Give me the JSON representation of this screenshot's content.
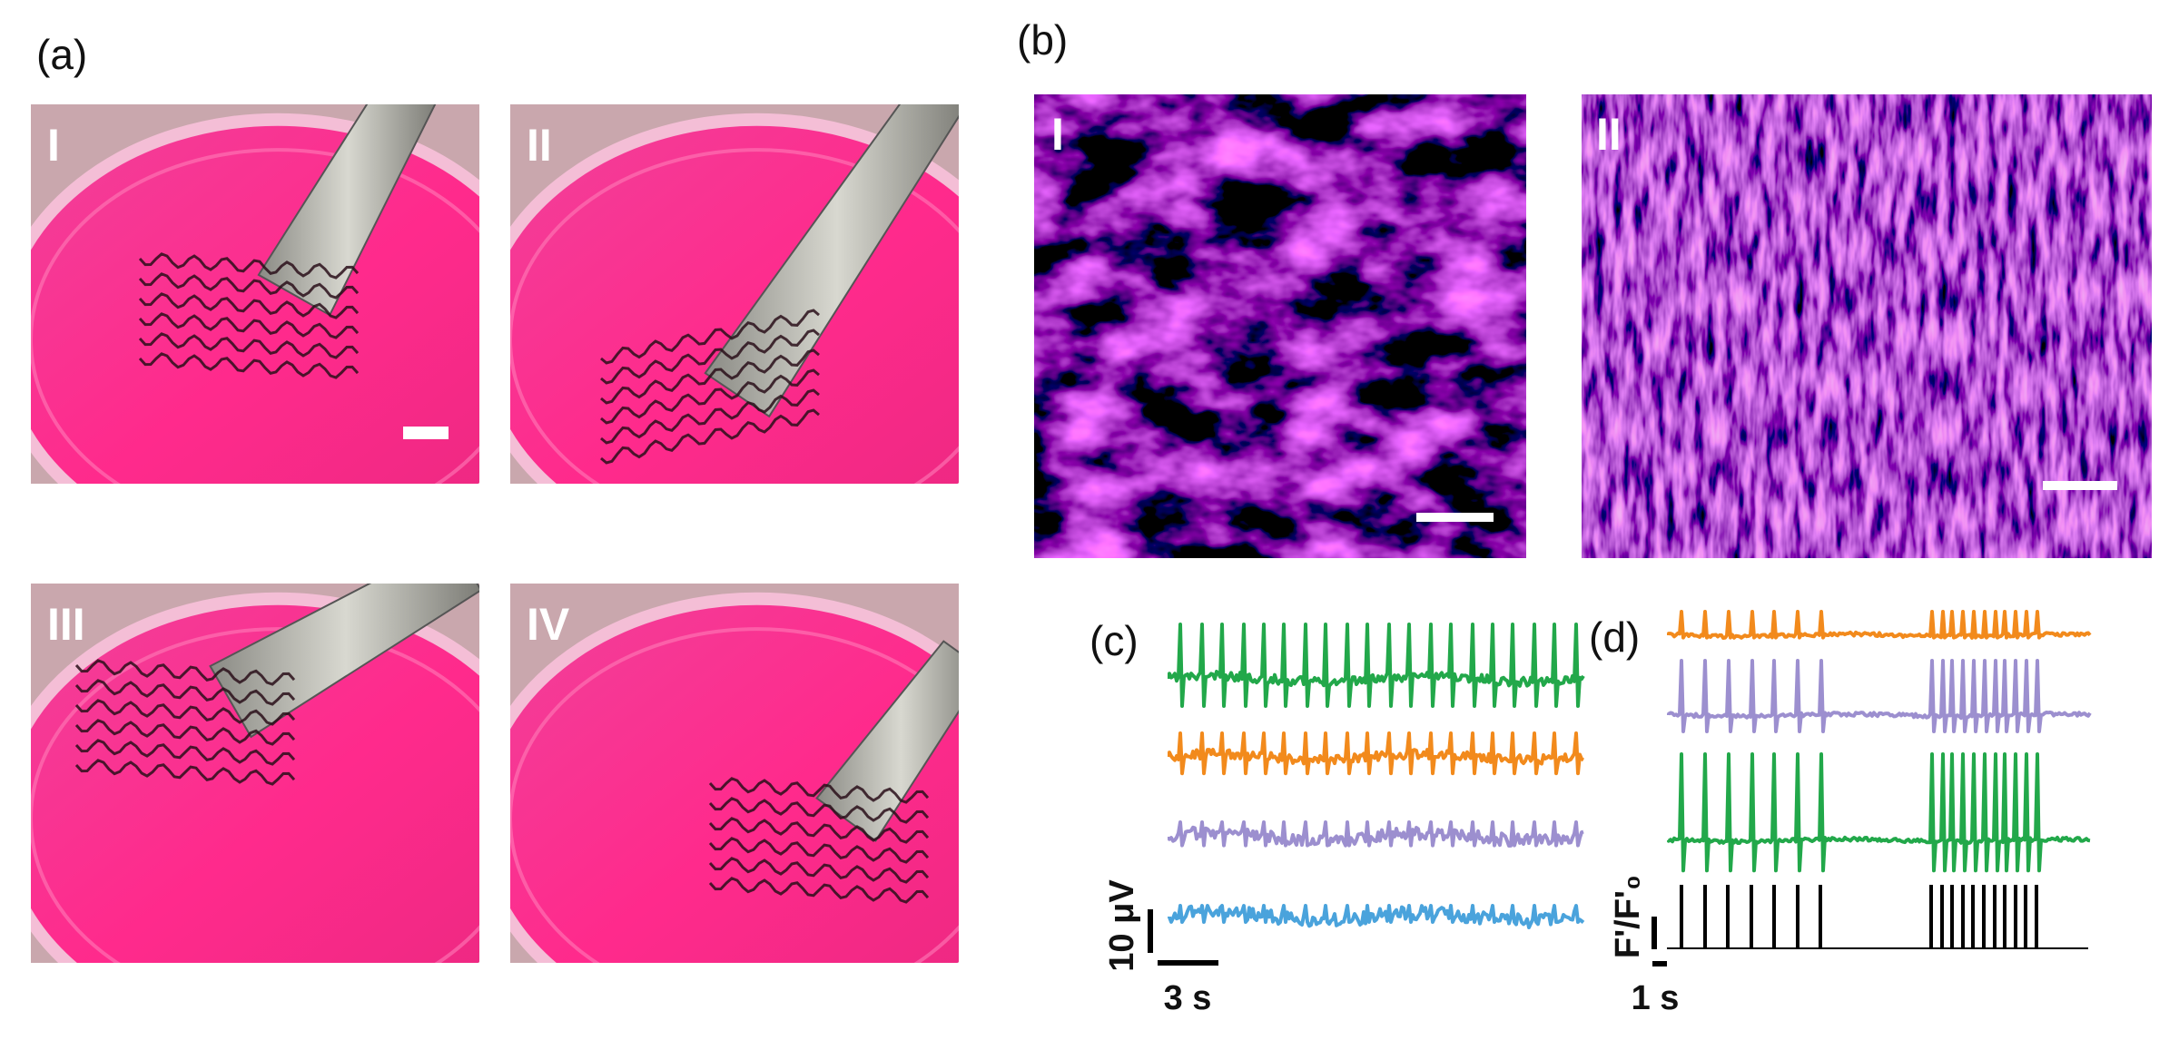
{
  "panel_a": {
    "label": "(a)",
    "images": [
      {
        "label": "I"
      },
      {
        "label": "II"
      },
      {
        "label": "III"
      },
      {
        "label": "IV"
      }
    ]
  },
  "panel_b": {
    "label": "(b)",
    "images": [
      {
        "label": "I"
      },
      {
        "label": "II"
      }
    ]
  },
  "panel_c": {
    "label": "(c)",
    "scale_y": "10 μV",
    "scale_x": "3 s"
  },
  "panel_d": {
    "label": "(d)",
    "scale_y": "F'/F'₀",
    "scale_x": "1 s"
  }
}
